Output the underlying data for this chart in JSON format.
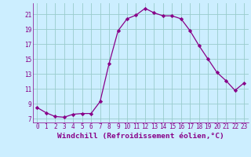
{
  "x": [
    0,
    1,
    2,
    3,
    4,
    5,
    6,
    7,
    8,
    9,
    10,
    11,
    12,
    13,
    14,
    15,
    16,
    17,
    18,
    19,
    20,
    21,
    22,
    23
  ],
  "y": [
    8.5,
    7.8,
    7.3,
    7.2,
    7.6,
    7.7,
    7.7,
    9.3,
    14.4,
    18.8,
    20.4,
    20.9,
    21.8,
    21.2,
    20.8,
    20.8,
    20.4,
    18.8,
    16.8,
    15.0,
    13.2,
    12.1,
    10.8,
    11.8
  ],
  "line_color": "#880088",
  "marker": "D",
  "marker_size": 2.2,
  "background_color": "#cceeff",
  "grid_color": "#99cccc",
  "xlabel": "Windchill (Refroidissement éolien,°C)",
  "xlim": [
    -0.5,
    23.5
  ],
  "ylim": [
    6.5,
    22.5
  ],
  "xticks": [
    0,
    1,
    2,
    3,
    4,
    5,
    6,
    7,
    8,
    9,
    10,
    11,
    12,
    13,
    14,
    15,
    16,
    17,
    18,
    19,
    20,
    21,
    22,
    23
  ],
  "yticks": [
    7,
    9,
    11,
    13,
    15,
    17,
    19,
    21
  ],
  "tick_color": "#880088",
  "label_color": "#880088",
  "tick_fontsize": 5.5,
  "xlabel_fontsize": 6.8,
  "linewidth": 0.9
}
